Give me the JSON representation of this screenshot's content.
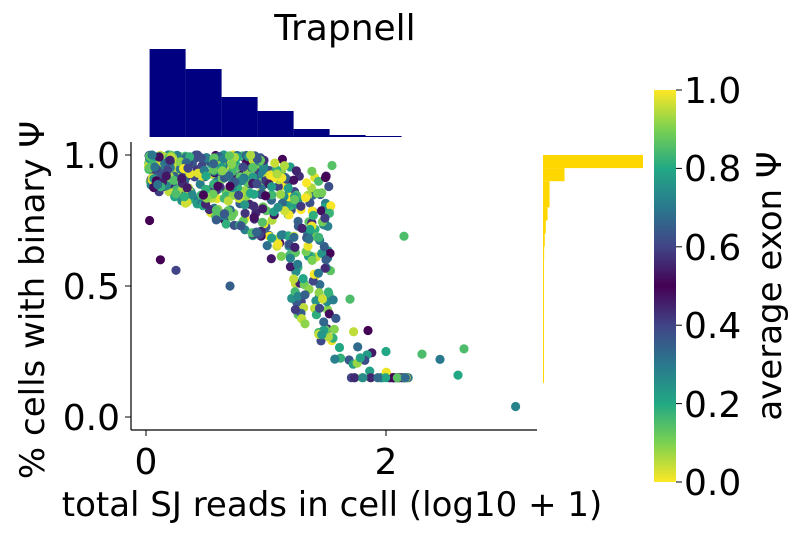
{
  "chart_data": {
    "type": "scatter",
    "title": "Trapnell",
    "xlabel": "total SJ reads in cell (log10 + 1)",
    "ylabel": "% cells with binary Ψ",
    "xlim": [
      -0.12,
      3.25
    ],
    "ylim": [
      -0.04,
      1.05
    ],
    "xticks": [
      "0",
      "2"
    ],
    "yticks": [
      "0.0",
      "0.5",
      "1.0"
    ],
    "colorbar": {
      "label": "average exon Ψ",
      "colormap": "viridis, diverging at 0.5 (yellow → green → teal → purple → blue → green → yellow)",
      "range": [
        0.0,
        1.0
      ],
      "ticks": [
        "0.0",
        "0.2",
        "0.4",
        "0.6",
        "0.8",
        "1.0"
      ]
    },
    "points_sample": [
      {
        "x": 0.05,
        "y": 1.0,
        "c": 0.3
      },
      {
        "x": 0.2,
        "y": 0.98,
        "c": 0.45
      },
      {
        "x": 0.35,
        "y": 0.95,
        "c": 0.6
      },
      {
        "x": 0.5,
        "y": 0.92,
        "c": 0.8
      },
      {
        "x": 0.7,
        "y": 0.88,
        "c": 0.5
      },
      {
        "x": 0.9,
        "y": 0.85,
        "c": 0.2
      },
      {
        "x": 1.1,
        "y": 0.8,
        "c": 0.75
      },
      {
        "x": 1.3,
        "y": 0.72,
        "c": 0.55
      },
      {
        "x": 1.5,
        "y": 0.6,
        "c": 0.35
      },
      {
        "x": 1.7,
        "y": 0.45,
        "c": 0.85
      },
      {
        "x": 1.85,
        "y": 0.33,
        "c": 0.5
      },
      {
        "x": 2.0,
        "y": 0.25,
        "c": 0.2
      },
      {
        "x": 2.15,
        "y": 0.69,
        "c": 0.85
      },
      {
        "x": 2.3,
        "y": 0.24,
        "c": 0.85
      },
      {
        "x": 2.45,
        "y": 0.22,
        "c": 0.3
      },
      {
        "x": 2.6,
        "y": 0.16,
        "c": 0.8
      },
      {
        "x": 2.65,
        "y": 0.26,
        "c": 0.85
      },
      {
        "x": 3.08,
        "y": 0.04,
        "c": 0.72
      },
      {
        "x": 0.03,
        "y": 0.75,
        "c": 0.5
      },
      {
        "x": 0.25,
        "y": 0.56,
        "c": 0.6
      },
      {
        "x": 0.7,
        "y": 0.5,
        "c": 0.65
      },
      {
        "x": 0.12,
        "y": 0.6,
        "c": 0.5
      }
    ],
    "marginal_x_hist": {
      "color": "#000080",
      "bins": [
        0.03,
        0.33,
        0.63,
        0.93,
        1.23,
        1.53,
        1.83,
        2.13
      ],
      "values": [
        88,
        68,
        40,
        26,
        8,
        2,
        1
      ]
    },
    "marginal_y_hist": {
      "color": "#FFD700",
      "bins": [
        0.13,
        0.2,
        0.3,
        0.4,
        0.5,
        0.55,
        0.6,
        0.65,
        0.7,
        0.75,
        0.8,
        0.9,
        0.95,
        1.0
      ],
      "values": [
        1,
        2,
        2,
        3,
        4,
        6,
        9,
        14,
        22,
        36,
        52,
        170,
        790
      ]
    }
  }
}
